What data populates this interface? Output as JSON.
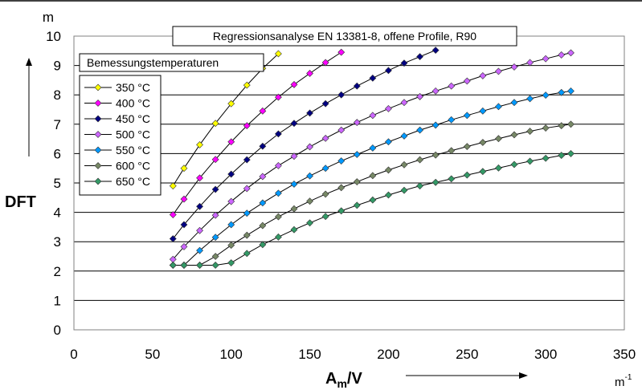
{
  "chart_data": {
    "type": "line",
    "title": "Regressionsanalyse EN 13381-8, offene Profile, R90",
    "ylabel": "DFT",
    "yunit": "m",
    "xlabel_main": "A",
    "xlabel_sub": "m",
    "xlabel_tail": "/V",
    "xunit_base": "m",
    "xunit_exp": "-1",
    "xlim": [
      0,
      350
    ],
    "ylim": [
      0,
      10
    ],
    "x_ticks": [
      0,
      50,
      100,
      150,
      200,
      250,
      300,
      350
    ],
    "y_ticks": [
      0,
      1,
      2,
      3,
      4,
      5,
      6,
      7,
      8,
      9,
      10
    ],
    "grid": true,
    "legend_title": "Bemessungstemperaturen",
    "legend_position": "top-left",
    "series": [
      {
        "name": "350 °C",
        "color": "#ffff00",
        "x": [
          63,
          70,
          80,
          90,
          100,
          110,
          120,
          130
        ],
        "y": [
          4.9,
          5.5,
          6.3,
          7.03,
          7.7,
          8.33,
          8.9,
          9.4
        ]
      },
      {
        "name": "400 °C",
        "color": "#ff00ff",
        "x": [
          63,
          70,
          80,
          90,
          100,
          110,
          120,
          130,
          140,
          150,
          160,
          170
        ],
        "y": [
          3.92,
          4.45,
          5.17,
          5.8,
          6.4,
          6.95,
          7.45,
          7.92,
          8.35,
          8.73,
          9.1,
          9.45
        ]
      },
      {
        "name": "450 °C",
        "color": "#000080",
        "x": [
          63,
          70,
          80,
          90,
          100,
          110,
          120,
          130,
          140,
          150,
          160,
          170,
          180,
          190,
          200,
          210,
          220,
          230
        ],
        "y": [
          3.1,
          3.58,
          4.2,
          4.78,
          5.3,
          5.79,
          6.25,
          6.67,
          7.03,
          7.38,
          7.7,
          8.0,
          8.3,
          8.57,
          8.83,
          9.08,
          9.3,
          9.52
        ]
      },
      {
        "name": "500 °C",
        "color": "#cc66ff",
        "x": [
          63,
          70,
          80,
          90,
          100,
          110,
          120,
          130,
          140,
          150,
          160,
          170,
          180,
          190,
          200,
          210,
          220,
          230,
          240,
          250,
          260,
          270,
          280,
          290,
          300,
          310,
          316
        ],
        "y": [
          2.4,
          2.83,
          3.38,
          3.9,
          4.37,
          4.81,
          5.22,
          5.59,
          5.91,
          6.23,
          6.52,
          6.8,
          7.06,
          7.3,
          7.53,
          7.74,
          7.94,
          8.13,
          8.3,
          8.47,
          8.65,
          8.8,
          8.95,
          9.1,
          9.23,
          9.36,
          9.43
        ]
      },
      {
        "name": "550 °C",
        "color": "#0099ff",
        "x": [
          63,
          70,
          80,
          90,
          100,
          110,
          120,
          130,
          140,
          150,
          160,
          170,
          180,
          190,
          200,
          210,
          220,
          230,
          240,
          250,
          260,
          270,
          280,
          290,
          300,
          310,
          316
        ],
        "y": [
          2.2,
          2.2,
          2.7,
          3.15,
          3.58,
          3.97,
          4.32,
          4.65,
          4.96,
          5.24,
          5.5,
          5.75,
          5.97,
          6.19,
          6.4,
          6.6,
          6.8,
          6.97,
          7.15,
          7.3,
          7.45,
          7.6,
          7.74,
          7.87,
          7.99,
          8.08,
          8.13
        ]
      },
      {
        "name": "600 °C",
        "color": "#778866",
        "x": [
          63,
          70,
          80,
          90,
          100,
          110,
          120,
          130,
          140,
          150,
          160,
          170,
          180,
          190,
          200,
          210,
          220,
          230,
          240,
          250,
          260,
          270,
          280,
          290,
          300,
          310,
          316
        ],
        "y": [
          2.2,
          2.2,
          2.2,
          2.5,
          2.88,
          3.22,
          3.55,
          3.85,
          4.12,
          4.38,
          4.62,
          4.84,
          5.04,
          5.25,
          5.44,
          5.62,
          5.79,
          5.95,
          6.1,
          6.24,
          6.38,
          6.51,
          6.64,
          6.76,
          6.87,
          6.95,
          7.0
        ]
      },
      {
        "name": "650 °C",
        "color": "#339966",
        "x": [
          63,
          70,
          80,
          90,
          100,
          110,
          120,
          130,
          140,
          150,
          160,
          170,
          180,
          190,
          200,
          210,
          220,
          230,
          240,
          250,
          260,
          270,
          280,
          290,
          300,
          310,
          316
        ],
        "y": [
          2.2,
          2.2,
          2.2,
          2.2,
          2.28,
          2.6,
          2.9,
          3.16,
          3.41,
          3.64,
          3.86,
          4.05,
          4.24,
          4.42,
          4.59,
          4.75,
          4.9,
          5.02,
          5.14,
          5.27,
          5.39,
          5.51,
          5.63,
          5.74,
          5.84,
          5.94,
          6.0
        ]
      }
    ]
  }
}
